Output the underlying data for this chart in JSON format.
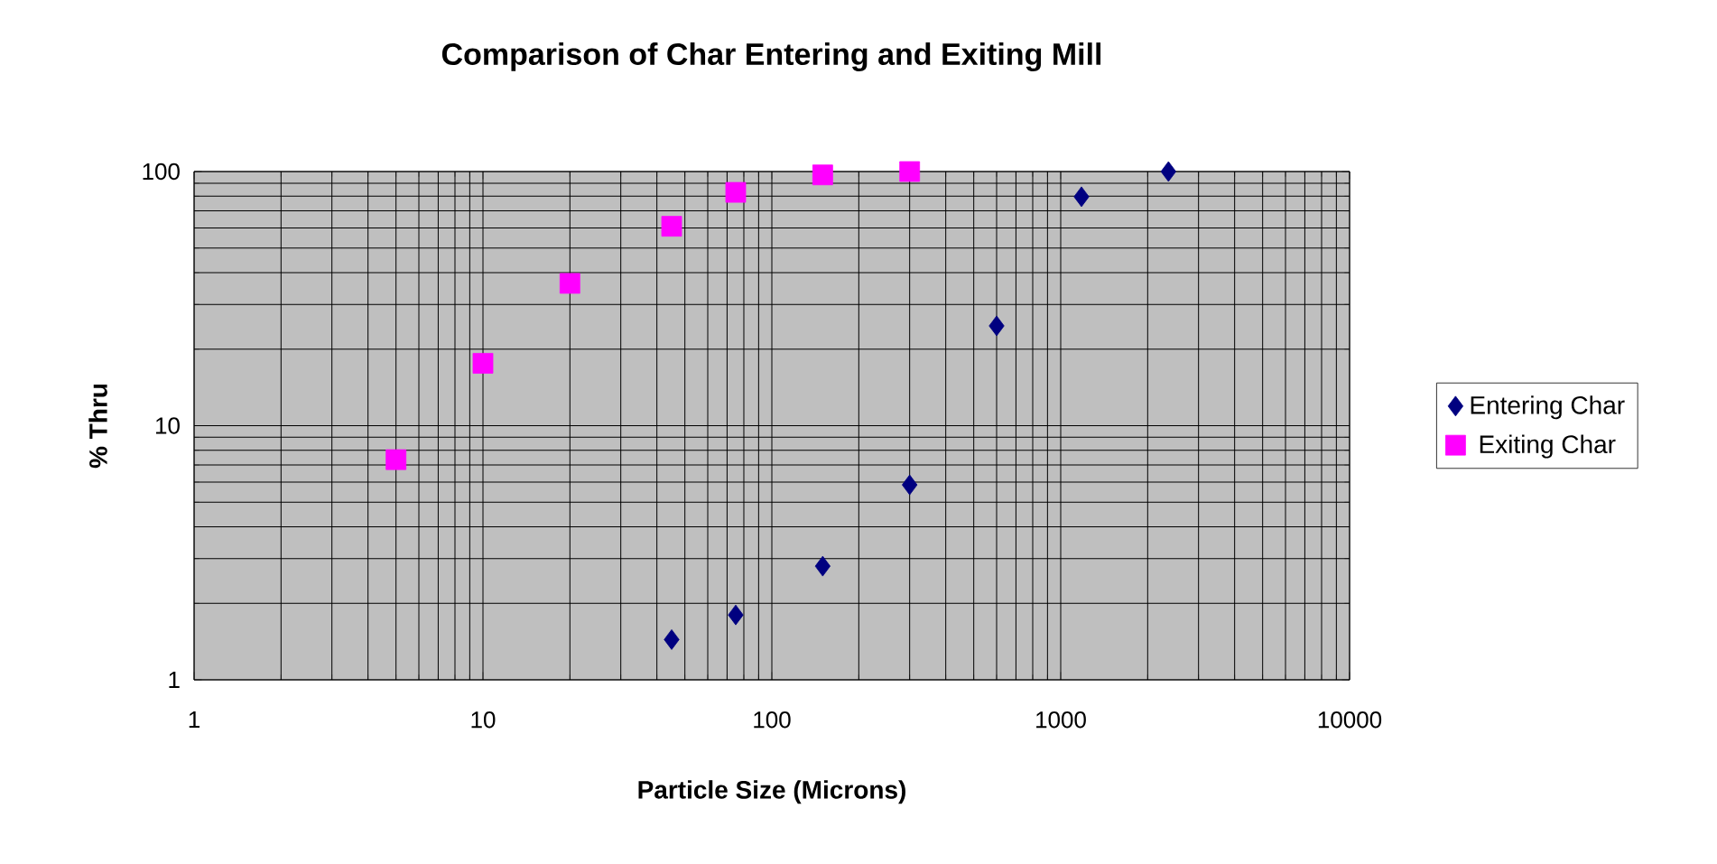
{
  "chart_data": {
    "type": "scatter",
    "title": "Comparison of Char Entering and Exiting Mill",
    "xlabel": "Particle Size (Microns)",
    "ylabel": "% Thru",
    "log": "xy",
    "grid": true,
    "legend": "right",
    "xlim": [
      1,
      10000
    ],
    "ylim": [
      1,
      100
    ],
    "xticks": [
      1,
      10,
      100,
      1000,
      10000
    ],
    "yticks": [
      1,
      10,
      100
    ],
    "series": [
      {
        "name": "Entering Char",
        "color": "#000080",
        "marker": "diamond",
        "x": [
          45,
          75,
          150,
          300,
          600,
          1180,
          2360
        ],
        "values": [
          1.44,
          1.8,
          2.8,
          5.85,
          24.7,
          79.6,
          100
        ]
      },
      {
        "name": "Exiting Char",
        "color": "#ff00ff",
        "marker": "square",
        "x": [
          5,
          10,
          20,
          45,
          75,
          150,
          300
        ],
        "values": [
          7.35,
          17.6,
          36.3,
          60.9,
          82.8,
          97,
          100
        ]
      }
    ]
  }
}
